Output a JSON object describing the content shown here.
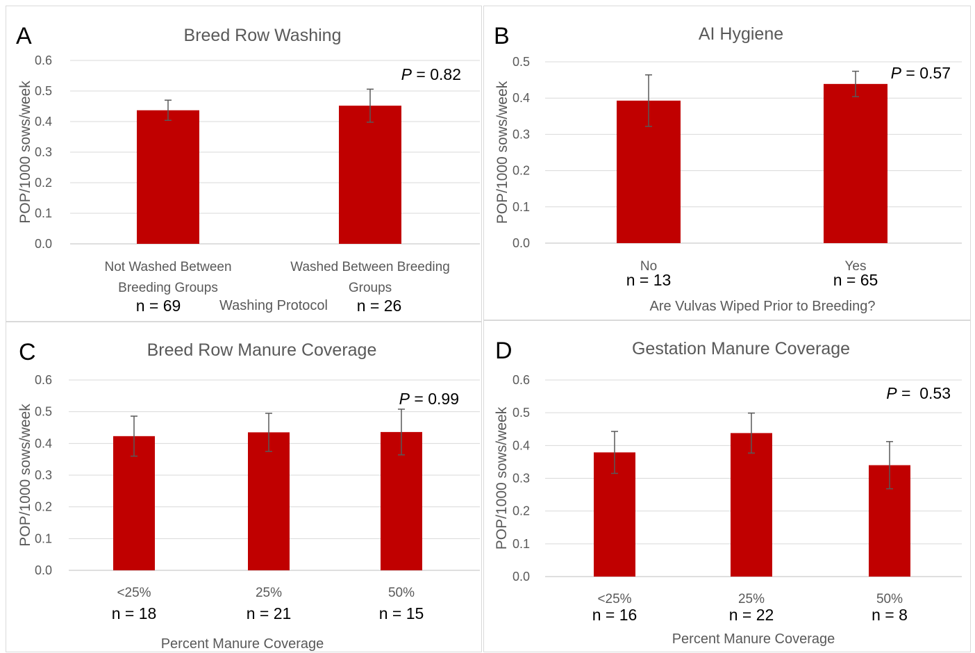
{
  "chart_data": [
    {
      "type": "bar",
      "letter": "A",
      "title": "Breed Row Washing",
      "xlabel": "Washing Protocol",
      "ylabel": "POP/1000 sows/week",
      "ylim": [
        0,
        0.6
      ],
      "yticks": [
        "0.0",
        "0.1",
        "0.2",
        "0.3",
        "0.4",
        "0.5",
        "0.6"
      ],
      "grid": true,
      "categories": [
        [
          "Not Washed Between",
          "Breeding Groups"
        ],
        [
          "Washed Between Breeding",
          "Groups"
        ]
      ],
      "values": [
        0.437,
        0.452
      ],
      "error": [
        0.033,
        0.054
      ],
      "n_labels": [
        "n = 69",
        "n = 26"
      ],
      "p_label": "P",
      "p_value": " = 0.82",
      "bar_color": "#c00000"
    },
    {
      "type": "bar",
      "letter": "B",
      "title": "AI Hygiene",
      "xlabel": "Are Vulvas Wiped Prior to Breeding?",
      "ylabel": "POP/1000 sows/week",
      "ylim": [
        0,
        0.5
      ],
      "yticks": [
        "0.0",
        "0.1",
        "0.2",
        "0.3",
        "0.4",
        "0.5"
      ],
      "grid": true,
      "categories": [
        [
          "No"
        ],
        [
          "Yes"
        ]
      ],
      "values": [
        0.393,
        0.439
      ],
      "error": [
        0.071,
        0.035
      ],
      "n_labels": [
        "n = 13",
        "n = 65"
      ],
      "p_label": "P",
      "p_value": " = 0.57",
      "bar_color": "#c00000"
    },
    {
      "type": "bar",
      "letter": "C",
      "title": "Breed Row Manure Coverage",
      "xlabel": "Percent Manure Coverage",
      "ylabel": "POP/1000 sows/week",
      "ylim": [
        0,
        0.6
      ],
      "yticks": [
        "0.0",
        "0.1",
        "0.2",
        "0.3",
        "0.4",
        "0.5",
        "0.6"
      ],
      "grid": true,
      "categories": [
        [
          "<25%"
        ],
        [
          "25%"
        ],
        [
          "50%"
        ]
      ],
      "values": [
        0.423,
        0.435,
        0.436
      ],
      "error": [
        0.063,
        0.06,
        0.072
      ],
      "n_labels": [
        "n = 18",
        "n = 21",
        "n = 15"
      ],
      "p_label": "P",
      "p_value": " = 0.99",
      "bar_color": "#c00000"
    },
    {
      "type": "bar",
      "letter": "D",
      "title": "Gestation Manure Coverage",
      "xlabel": "Percent Manure Coverage",
      "ylabel": "POP/1000 sows/week",
      "ylim": [
        0,
        0.6
      ],
      "yticks": [
        "0.0",
        "0.1",
        "0.2",
        "0.3",
        "0.4",
        "0.5",
        "0.6"
      ],
      "grid": true,
      "categories": [
        [
          "<25%"
        ],
        [
          "25%"
        ],
        [
          "50%"
        ]
      ],
      "values": [
        0.379,
        0.438,
        0.34
      ],
      "error": [
        0.064,
        0.061,
        0.072
      ],
      "n_labels": [
        "n = 16",
        "n = 22",
        "n = 8"
      ],
      "p_label": "P",
      "p_value": " =  0.53",
      "bar_color": "#c00000"
    }
  ]
}
